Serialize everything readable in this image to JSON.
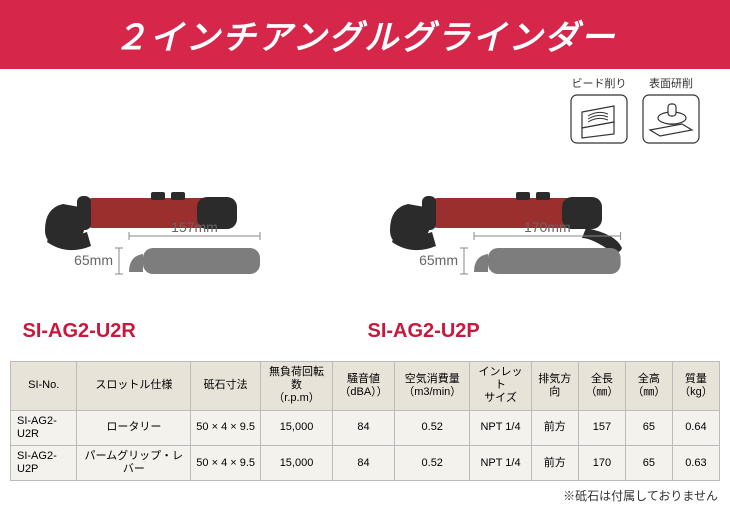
{
  "colors": {
    "banner_bg": "#d6274a",
    "banner_text": "#ffffff",
    "product_label": "#c8193c",
    "table_header_bg": "#e8e3d8",
    "table_row_bg": "#f4f2ec",
    "tool_red": "#9b2f2e",
    "tool_dark": "#2b2b2b",
    "silhouette": "#7d7d7d",
    "dim_line": "#888888",
    "dim_text": "#666666"
  },
  "title": "２インチアングルグラインダー",
  "usage_icons": [
    {
      "label": "ビード削り"
    },
    {
      "label": "表面研削"
    }
  ],
  "products": [
    {
      "id": "p1",
      "name": "SI-AG2-U2R",
      "length_mm": "157mm",
      "height_mm": "65mm",
      "has_lever": false,
      "body_len": 150
    },
    {
      "id": "p2",
      "name": "SI-AG2-U2P",
      "length_mm": "170mm",
      "height_mm": "65mm",
      "has_lever": true,
      "body_len": 170
    }
  ],
  "table": {
    "headers": [
      "SI-No.",
      "スロットル仕様",
      "砥石寸法",
      "無負荷回転数\n（r.p.m）",
      "騒音値\n（dBA））",
      "空気消費量\n（m3/min）",
      "インレット\nサイズ",
      "排気方向",
      "全長\n（㎜）",
      "全高\n（㎜）",
      "質量\n（kg）"
    ],
    "rows": [
      [
        "SI-AG2-U2R",
        "ロータリー",
        "50 × 4 × 9.5",
        "15,000",
        "84",
        "0.52",
        "NPT 1/4",
        "前方",
        "157",
        "65",
        "0.64"
      ],
      [
        "SI-AG2-U2P",
        "パームグリップ・レバー",
        "50 × 4 × 9.5",
        "15,000",
        "84",
        "0.52",
        "NPT 1/4",
        "前方",
        "170",
        "65",
        "0.63"
      ]
    ],
    "col_widths": [
      "70px",
      "140px",
      "80px",
      "70px",
      "55px",
      "70px",
      "65px",
      "50px",
      "40px",
      "40px",
      "40px"
    ]
  },
  "note": "※砥石は付属しておりません"
}
